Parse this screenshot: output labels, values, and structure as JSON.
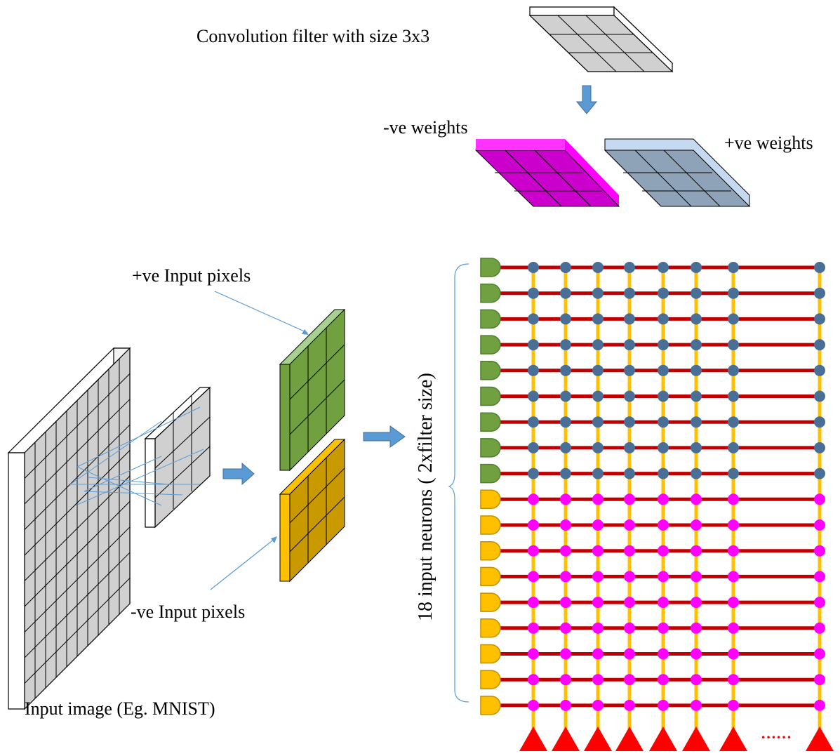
{
  "labels": {
    "filter": "Convolution filter with size 3x3",
    "neg_weights": "-ve weights",
    "pos_weights": "+ve weights",
    "pos_pixels": "+ve Input pixels",
    "neg_pixels": "-ve Input pixels",
    "input_image": "Input image (Eg. MNIST)",
    "input_neurons": "18 input neurons ( 2xfilter size)",
    "ellipsis": "……"
  },
  "colors": {
    "filter_gray": "#d0d0d0",
    "neg_weight_magenta": "#cc00cc",
    "pos_weight_slate": "#8ea2b8",
    "pos_pixel_green": "#70a040",
    "neg_pixel_gold": "#c99a00",
    "row_line_red": "#c00000",
    "column_line_yellow": "#ffc000",
    "pos_synapse_blue": "#4a6f96",
    "neg_synapse_pink": "#ff00ff",
    "output_neuron_red": "#ff0000",
    "arrow_blue": "#5b9bd5"
  },
  "network": {
    "input_neurons": 18,
    "positive_rows": 9,
    "negative_rows": 9,
    "output_columns": 8
  }
}
